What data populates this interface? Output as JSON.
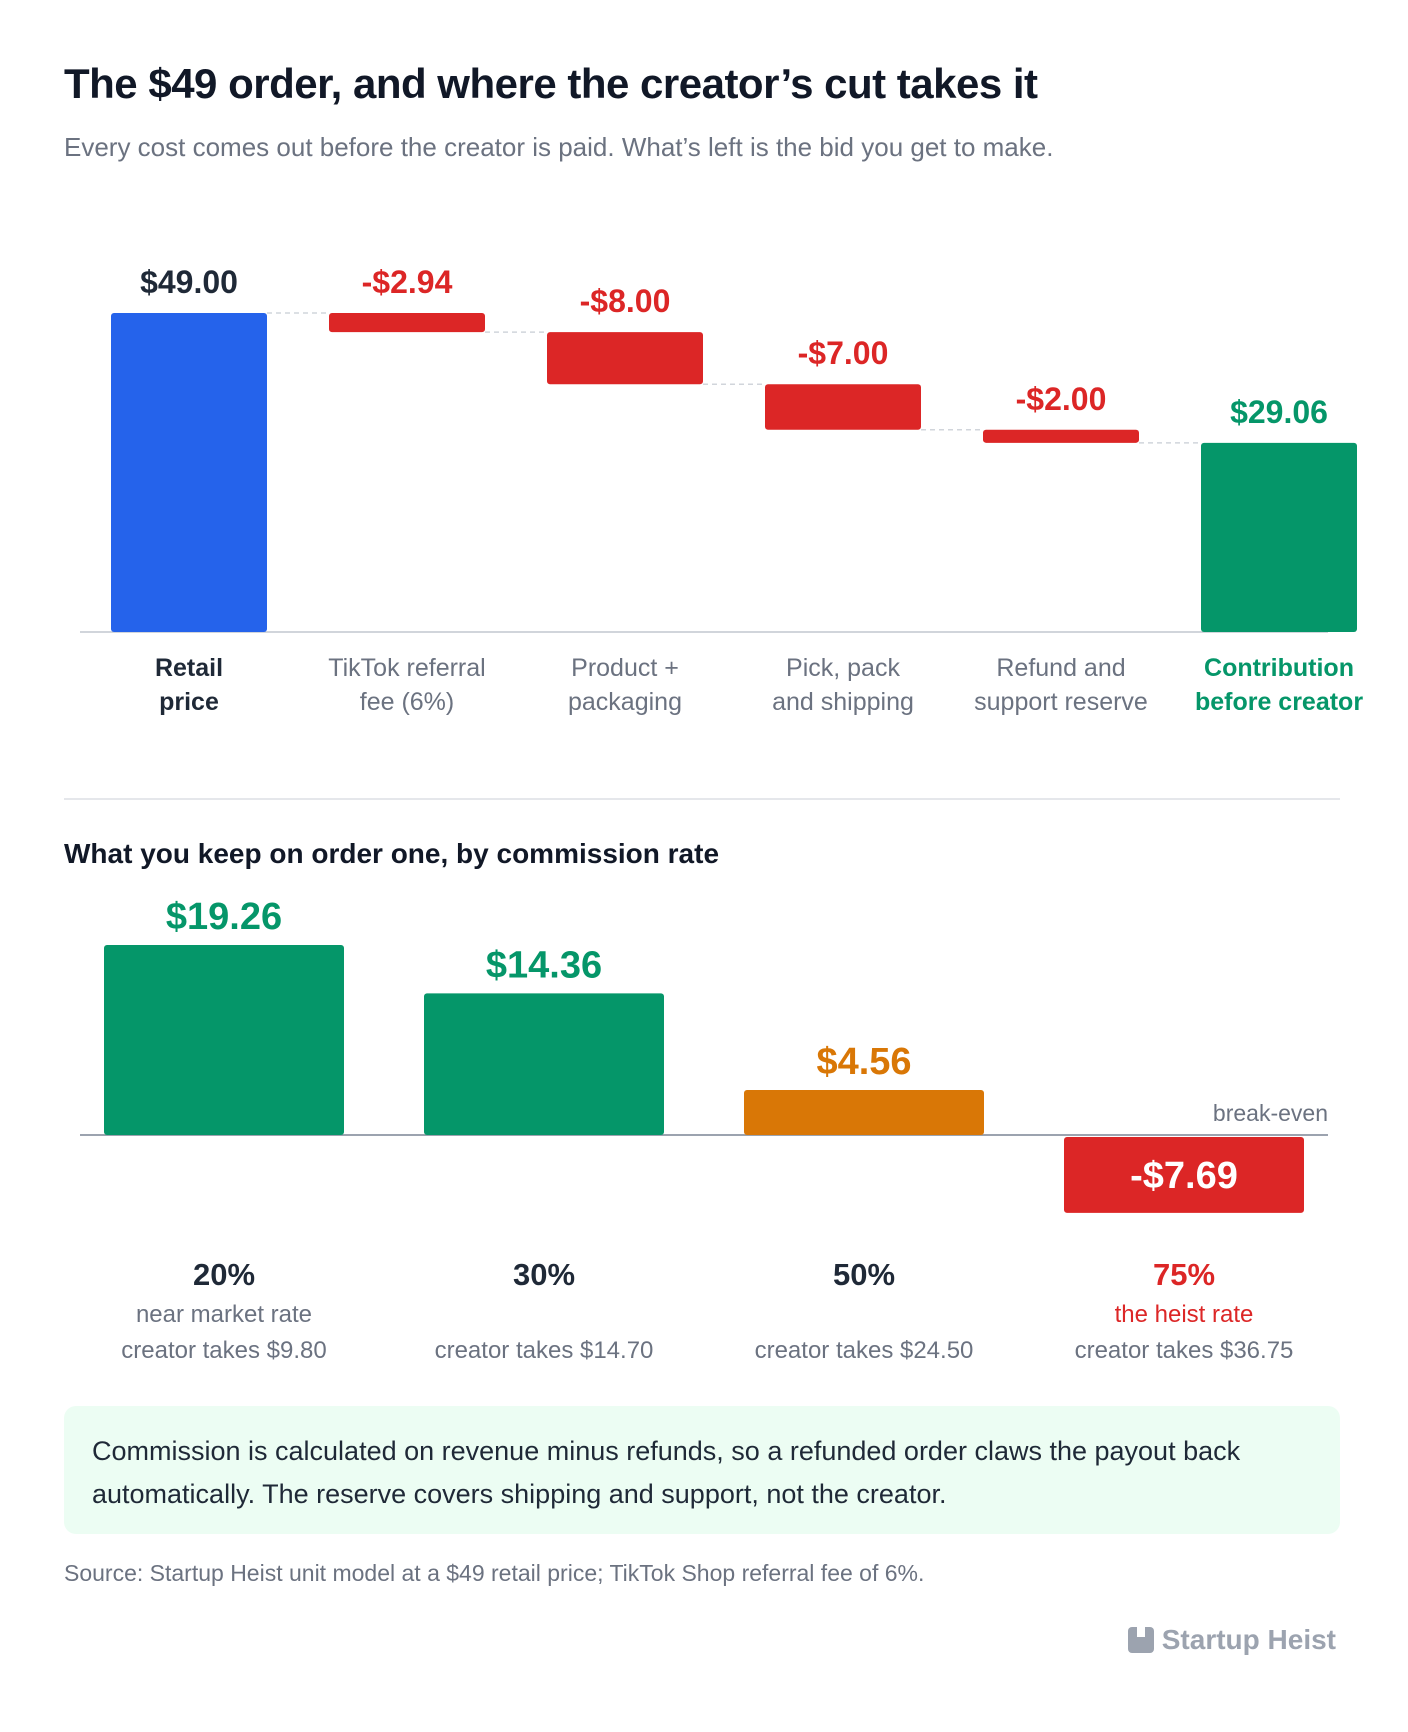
{
  "header": {
    "title": "The $49 order, and where the creator’s cut takes it",
    "subtitle": "Every cost comes out before the creator is paid. What’s left is the bid you get to make."
  },
  "colors": {
    "blue": "#2563eb",
    "red": "#dc2626",
    "green": "#059669",
    "orange": "#d97706",
    "dark": "#1f2937",
    "gray": "#6b7280",
    "baseline": "#9ca3af",
    "connector": "#d1d5db"
  },
  "chart_data": [
    {
      "type": "bar",
      "subtype": "waterfall",
      "ylim": [
        0,
        49
      ],
      "steps": [
        {
          "label": [
            "Retail",
            "price"
          ],
          "value": 49.0,
          "value_label": "$49.00",
          "kind": "total",
          "color": "blue"
        },
        {
          "label": [
            "TikTok referral",
            "fee (6%)"
          ],
          "value": -2.94,
          "value_label": "-$2.94",
          "kind": "decrease",
          "color": "red"
        },
        {
          "label": [
            "Product +",
            "packaging"
          ],
          "value": -8.0,
          "value_label": "-$8.00",
          "kind": "decrease",
          "color": "red"
        },
        {
          "label": [
            "Pick, pack",
            "and shipping"
          ],
          "value": -7.0,
          "value_label": "-$7.00",
          "kind": "decrease",
          "color": "red"
        },
        {
          "label": [
            "Refund and",
            "support reserve"
          ],
          "value": -2.0,
          "value_label": "-$2.00",
          "kind": "decrease",
          "color": "red"
        },
        {
          "label": [
            "Contribution",
            "before creator"
          ],
          "value": 29.06,
          "value_label": "$29.06",
          "kind": "total",
          "color": "green"
        }
      ]
    },
    {
      "type": "bar",
      "title": "What you keep on order one, by commission rate",
      "baseline_label": "break-even",
      "ylim": [
        -7.69,
        19.26
      ],
      "categories": [
        "20%",
        "30%",
        "50%",
        "75%"
      ],
      "values": [
        19.26,
        14.36,
        4.56,
        -7.69
      ],
      "value_labels": [
        "$19.26",
        "$14.36",
        "$4.56",
        "-$7.69"
      ],
      "bar_colors": [
        "green",
        "green",
        "orange",
        "red"
      ],
      "notes": [
        "near market rate",
        "",
        "",
        "the heist rate"
      ],
      "creator_takes": [
        "creator takes $9.80",
        "creator takes $14.70",
        "creator takes $24.50",
        "creator takes $36.75"
      ]
    }
  ],
  "section": {
    "title": "What you keep on order one, by commission rate"
  },
  "note": "Commission is calculated on revenue minus refunds, so a refunded order claws the payout back automatically. The reserve covers shipping and support, not the creator.",
  "source": "Source: Startup Heist unit model at a $49 retail price; TikTok Shop referral fee of 6%.",
  "brand": {
    "name": "Startup Heist",
    "icon": "startup-heist-logo-icon"
  }
}
